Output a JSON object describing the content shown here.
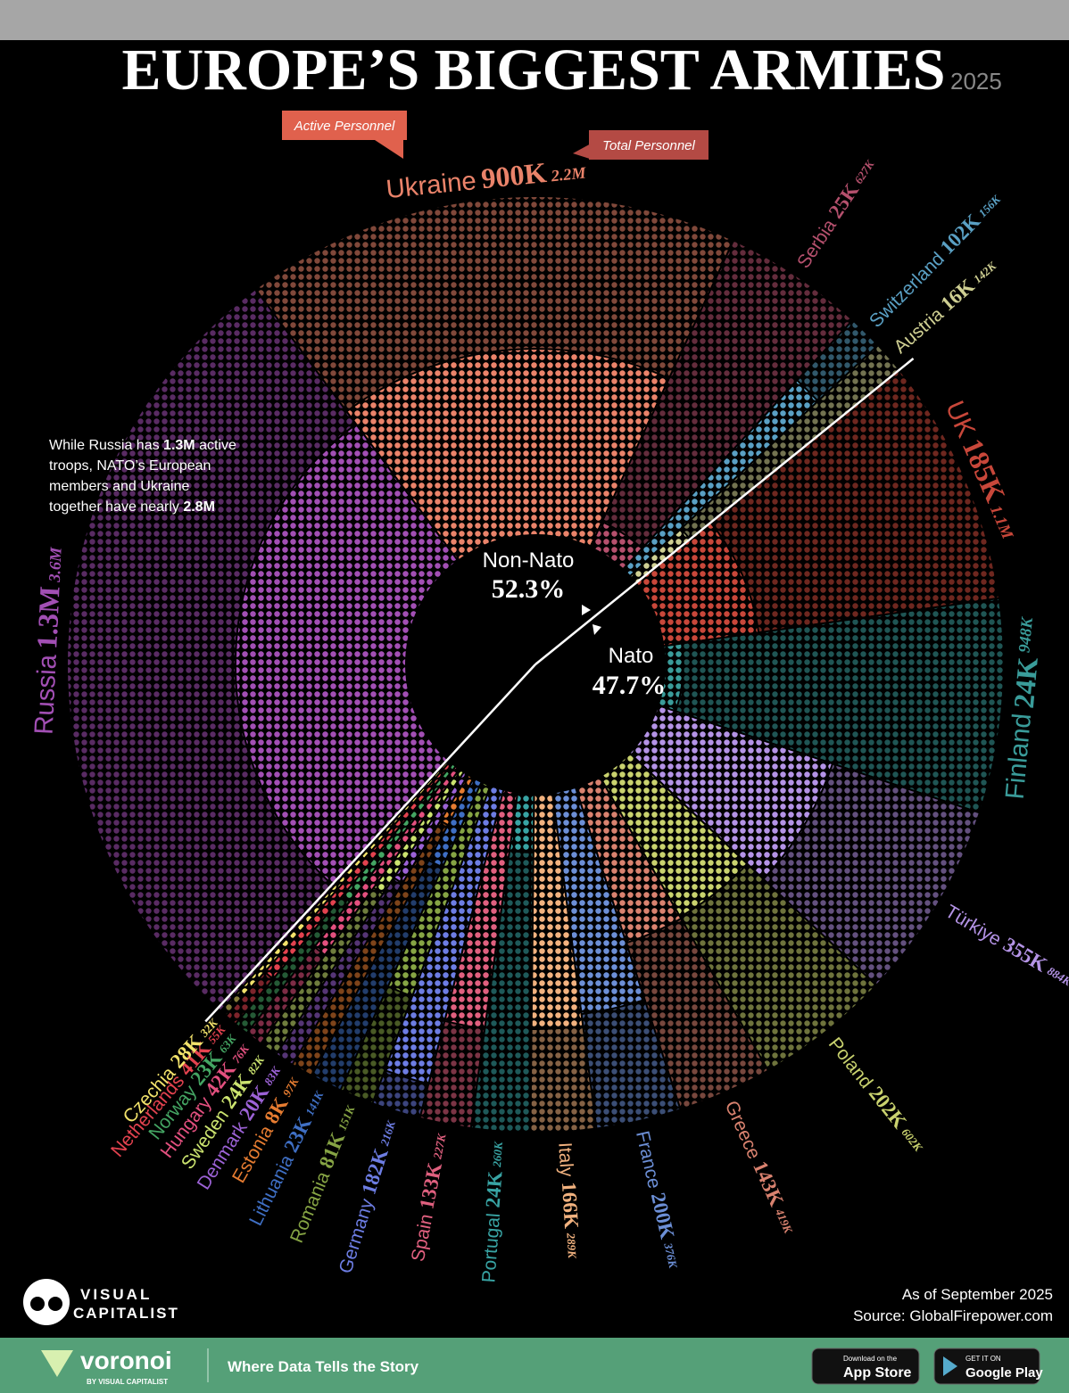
{
  "chart_data": {
    "type": "radial-dot",
    "title": "EUROPE’S BIGGEST ARMIES",
    "subtitle": "2025",
    "categories": [
      "UK",
      "Finland",
      "Türkiye",
      "Poland",
      "Greece",
      "France",
      "Italy",
      "Portugal",
      "Spain",
      "Germany",
      "Romania",
      "Lithuania",
      "Estonia",
      "Denmark",
      "Sweden",
      "Hungary",
      "Norway",
      "Netherlands",
      "Czechia",
      "Russia",
      "Ukraine",
      "Serbia",
      "Switzerland",
      "Austria"
    ],
    "colors": [
      "#c8473a",
      "#3a9c9a",
      "#b493e6",
      "#c9d26e",
      "#d9826f",
      "#6c8fd6",
      "#f2b27f",
      "#38a3a3",
      "#e0607f",
      "#6d7de3",
      "#86a444",
      "#3f6fc4",
      "#e67c31",
      "#9c62d6",
      "#cbe36f",
      "#e3507f",
      "#44a563",
      "#e3424f",
      "#f2e26b",
      "#a24fb4",
      "#ea836a",
      "#b5506d",
      "#5aa0c4",
      "#cfcf92"
    ],
    "series": [
      {
        "name": "Active Personnel",
        "values": [
          185000,
          24000,
          355000,
          202000,
          143000,
          200000,
          166000,
          24000,
          133000,
          182000,
          81000,
          23000,
          8000,
          20000,
          24000,
          42000,
          23000,
          41000,
          28000,
          1300000,
          900000,
          25000,
          102000,
          16000
        ],
        "value_labels": [
          "185K",
          "24K",
          "355K",
          "202K",
          "143K",
          "200K",
          "166K",
          "24K",
          "133K",
          "182K",
          "81K",
          "23K",
          "8K",
          "20K",
          "24K",
          "42K",
          "23K",
          "41K",
          "28K",
          "1.3M",
          "900K",
          "25K",
          "102K",
          "16K"
        ]
      },
      {
        "name": "Total Personnel",
        "values": [
          1100000,
          948000,
          884000,
          602000,
          419000,
          376000,
          289000,
          260000,
          227000,
          216000,
          151000,
          141000,
          97000,
          83000,
          82000,
          76000,
          63000,
          55000,
          32000,
          3600000,
          2200000,
          627000,
          156000,
          142000
        ],
        "value_labels": [
          "1.1M",
          "948K",
          "884K",
          "602K",
          "419K",
          "376K",
          "289K",
          "260K",
          "227K",
          "216K",
          "151K",
          "141K",
          "97K",
          "83K",
          "82K",
          "76K",
          "63K",
          "55K",
          "32K",
          "3.6M",
          "2.2M",
          "627K",
          "156K",
          "142K"
        ]
      }
    ],
    "shares": [
      {
        "name": "Non-Nato",
        "value": 52.3,
        "value_label": "52.3%"
      },
      {
        "name": "Nato",
        "value": 47.7,
        "value_label": "47.7%"
      }
    ],
    "annotation": [
      "While Russia has ",
      "1.3M",
      " active troops, NATO’s European members and Ukraine together have nearly ",
      "2.8M"
    ]
  },
  "footer": {
    "brand_top": "VISUAL",
    "brand_bottom": "CAPITALIST",
    "date": "As of September 2025",
    "source": "Source: GlobalFirepower.com",
    "voronoi": "voronoi",
    "voronoi_by": "BY VISUAL CAPITALIST",
    "tagline": "Where Data Tells the Story",
    "appstore_small": "Download on the",
    "appstore": "App Store",
    "googleplay_small": "GET IT ON",
    "googleplay": "Google Play"
  }
}
